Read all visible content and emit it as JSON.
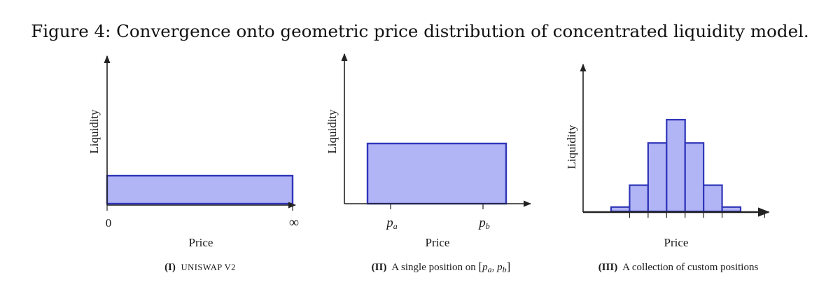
{
  "figure": {
    "title": "Figure 4:  Convergence onto geometric price distribution of concentrated liquidity model."
  },
  "colors": {
    "bar_fill": "#b1b4f5",
    "bar_stroke": "#2f35b8",
    "axis": "#222222"
  },
  "panels": [
    {
      "ylabel": "Liquidity",
      "xlabel": "Price",
      "caption_number": "(I)",
      "caption_text": "Uniswap v2",
      "tick_left": "0",
      "tick_right": "∞"
    },
    {
      "ylabel": "Liquidity",
      "xlabel": "Price",
      "caption_number": "(II)",
      "caption_text": "A single position on ",
      "caption_open": "[",
      "caption_pa_main": "p",
      "caption_pa_sub": "a",
      "caption_sep": ", ",
      "caption_pb_main": "p",
      "caption_pb_sub": "b",
      "caption_close": "]",
      "tick_pa_main": "p",
      "tick_pa_sub": "a",
      "tick_pb_main": "p",
      "tick_pb_sub": "b"
    },
    {
      "ylabel": "Liquidity",
      "xlabel": "Price",
      "caption_number": "(III)",
      "caption_text": "A collection of custom positions"
    }
  ],
  "chart_data": [
    {
      "type": "bar",
      "title": "",
      "xlabel": "Price",
      "ylabel": "Liquidity",
      "x_range": [
        0,
        "∞"
      ],
      "bars": [
        {
          "x0": 0,
          "x1": 1,
          "height": 1
        }
      ]
    },
    {
      "type": "bar",
      "title": "",
      "xlabel": "Price",
      "ylabel": "Liquidity",
      "bars": [
        {
          "x0": 0.25,
          "x1": 0.75,
          "height": 0.43
        }
      ]
    },
    {
      "type": "bar",
      "title": "",
      "xlabel": "Price",
      "ylabel": "Liquidity",
      "bars": [
        {
          "x0": 0,
          "x1": 1,
          "height": 0.03
        },
        {
          "x0": 1,
          "x1": 2,
          "height": 0.18
        },
        {
          "x0": 2,
          "x1": 3,
          "height": 0.47
        },
        {
          "x0": 3,
          "x1": 4,
          "height": 0.63
        },
        {
          "x0": 4,
          "x1": 5,
          "height": 0.47
        },
        {
          "x0": 5,
          "x1": 6,
          "height": 0.18
        },
        {
          "x0": 6,
          "x1": 7,
          "height": 0.03
        }
      ]
    }
  ]
}
